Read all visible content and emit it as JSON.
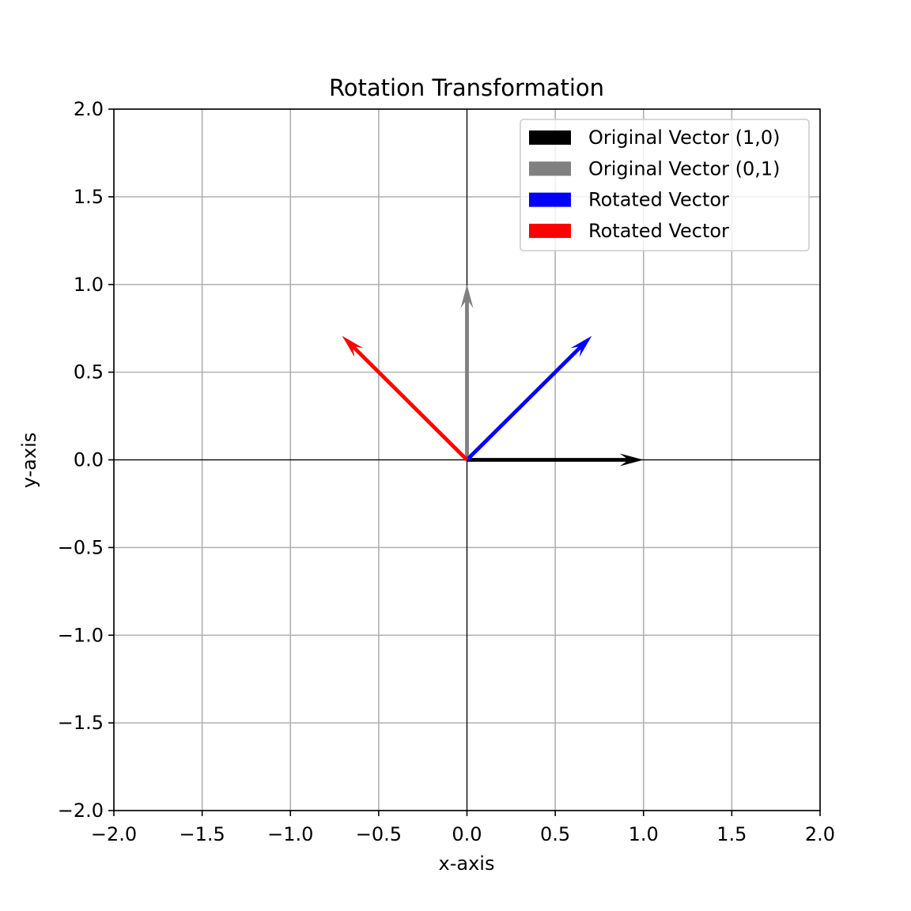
{
  "chart_data": {
    "type": "quiver",
    "title": "Rotation Transformation",
    "xlabel": "x-axis",
    "ylabel": "y-axis",
    "xlim": [
      -2.0,
      2.0
    ],
    "ylim": [
      -2.0,
      2.0
    ],
    "xticks": [
      -2.0,
      -1.5,
      -1.0,
      -0.5,
      0.0,
      0.5,
      1.0,
      1.5,
      2.0
    ],
    "yticks": [
      -2.0,
      -1.5,
      -1.0,
      -0.5,
      0.0,
      0.5,
      1.0,
      1.5,
      2.0
    ],
    "xtick_labels": [
      "−2.0",
      "−1.5",
      "−1.0",
      "−0.5",
      "0.0",
      "0.5",
      "1.0",
      "1.5",
      "2.0"
    ],
    "ytick_labels": [
      "−2.0",
      "−1.5",
      "−1.0",
      "−0.5",
      "0.0",
      "0.5",
      "1.0",
      "1.5",
      "2.0"
    ],
    "grid": true,
    "axes_lines_at_zero": true,
    "legend_position": "top-right",
    "vectors": [
      {
        "name": "Original Vector (1,0)",
        "x0": 0,
        "y0": 0,
        "dx": 1.0,
        "dy": 0.0,
        "color": "#000000"
      },
      {
        "name": "Original Vector (0,1)",
        "x0": 0,
        "y0": 0,
        "dx": 0.0,
        "dy": 1.0,
        "color": "#808080"
      },
      {
        "name": "Rotated Vector",
        "x0": 0,
        "y0": 0,
        "dx": 0.707,
        "dy": 0.707,
        "color": "#0000ff"
      },
      {
        "name": "Rotated Vector",
        "x0": 0,
        "y0": 0,
        "dx": -0.707,
        "dy": 0.707,
        "color": "#ff0000"
      }
    ]
  }
}
